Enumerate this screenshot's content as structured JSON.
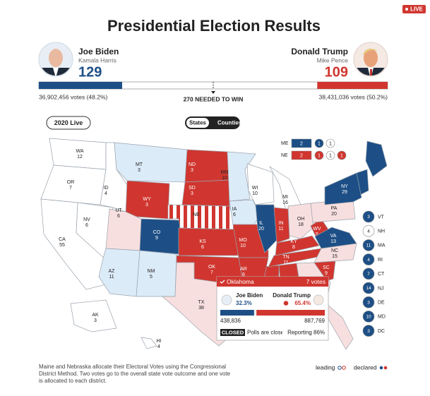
{
  "header": {
    "title": "Presidential Election Results",
    "live": "LIVE"
  },
  "candidates": [
    {
      "name": "Joe Biden",
      "running_mate": "Kamala Harris",
      "electoral_votes": 129,
      "popular": "36,902,456 votes (48.2%)",
      "color": "#1d4f86"
    },
    {
      "name": "Donald Trump",
      "running_mate": "Mike Pence",
      "electoral_votes": 109,
      "popular": "38,431,036 votes (50.2%)",
      "color": "#d0362f"
    }
  ],
  "needed_to_win": {
    "value": 270,
    "label": "270 NEEDED TO WIN"
  },
  "controls": {
    "year_button": "2020 Live",
    "toggle": [
      "States",
      "Counties"
    ]
  },
  "split_states": [
    {
      "abbr": "ME",
      "items": [
        {
          "votes": 2,
          "color": "#1d4f86",
          "shape": "box"
        },
        {
          "votes": 1,
          "color": "#1d4f86"
        },
        {
          "votes": 1,
          "color": "#ffffff"
        }
      ]
    },
    {
      "abbr": "NE",
      "items": [
        {
          "votes": 2,
          "color": "#d0362f",
          "shape": "box"
        },
        {
          "votes": 1,
          "color": "#d0362f"
        },
        {
          "votes": 1,
          "color": "#ffffff"
        },
        {
          "votes": 1,
          "color": "#d0362f"
        }
      ]
    }
  ],
  "states": [
    {
      "abbr": "WA",
      "votes": 12,
      "color": "#ffffff"
    },
    {
      "abbr": "OR",
      "votes": 7,
      "color": "#ffffff"
    },
    {
      "abbr": "CA",
      "votes": 55,
      "color": "#ffffff"
    },
    {
      "abbr": "NV",
      "votes": 6,
      "color": "#ffffff"
    },
    {
      "abbr": "ID",
      "votes": 4,
      "color": "#ffffff"
    },
    {
      "abbr": "MT",
      "votes": 3,
      "color": "#dcebf8"
    },
    {
      "abbr": "WY",
      "votes": 3,
      "color": "#d0362f"
    },
    {
      "abbr": "UT",
      "votes": 6,
      "color": "#f8dfdf"
    },
    {
      "abbr": "CO",
      "votes": 9,
      "color": "#1d4f86"
    },
    {
      "abbr": "AZ",
      "votes": 11,
      "color": "#dcebf8"
    },
    {
      "abbr": "NM",
      "votes": 5,
      "color": "#dcebf8"
    },
    {
      "abbr": "ND",
      "votes": 3,
      "color": "#d0362f"
    },
    {
      "abbr": "SD",
      "votes": 3,
      "color": "#d0362f"
    },
    {
      "abbr": "NE",
      "color": "#d0362f",
      "pattern": "striped"
    },
    {
      "abbr": "KS",
      "votes": 6,
      "color": "#d0362f"
    },
    {
      "abbr": "OK",
      "votes": 7,
      "color": "#d0362f"
    },
    {
      "abbr": "TX",
      "votes": 38,
      "color": "#f8dfdf"
    },
    {
      "abbr": "MN",
      "votes": 10,
      "color": "#dcebf8"
    },
    {
      "abbr": "IA",
      "votes": 6,
      "color": "#dcebf8"
    },
    {
      "abbr": "MO",
      "votes": 10,
      "color": "#d0362f"
    },
    {
      "abbr": "AR",
      "votes": 6,
      "color": "#d0362f"
    },
    {
      "abbr": "WI",
      "votes": 10,
      "color": "#ffffff"
    },
    {
      "abbr": "IL",
      "votes": 20,
      "color": "#1d4f86"
    },
    {
      "abbr": "MI",
      "votes": 16,
      "color": "#ffffff"
    },
    {
      "abbr": "IN",
      "votes": 11,
      "color": "#d0362f"
    },
    {
      "abbr": "OH",
      "votes": 18,
      "color": "#f8dfdf"
    },
    {
      "abbr": "KY",
      "votes": 8,
      "color": "#d0362f"
    },
    {
      "abbr": "TN",
      "votes": 11,
      "color": "#d0362f"
    },
    {
      "abbr": "WV",
      "votes": 5,
      "color": "#d0362f"
    },
    {
      "abbr": "VA",
      "votes": 13,
      "color": "#1d4f86"
    },
    {
      "abbr": "NC",
      "votes": 15,
      "color": "#f8dfdf"
    },
    {
      "abbr": "SC",
      "votes": 9,
      "color": "#d0362f"
    },
    {
      "abbr": "PA",
      "votes": 20,
      "color": "#f8dfdf"
    },
    {
      "abbr": "NY",
      "votes": 29,
      "color": "#1d4f86"
    },
    {
      "abbr": "AK",
      "votes": 3,
      "color": "#ffffff"
    },
    {
      "abbr": "HI",
      "votes": 4,
      "color": "#ffffff"
    }
  ],
  "other_state_colors": [
    "#d0362f",
    "#d0362f",
    "#d0362f",
    "#f8dfdf",
    "#f8dfdf",
    "#1d4f86",
    "#1d4f86"
  ],
  "small_states": [
    {
      "abbr": "VT",
      "votes": 3,
      "color": "#1d4f86"
    },
    {
      "abbr": "NH",
      "votes": 4,
      "color": "#ffffff"
    },
    {
      "abbr": "MA",
      "votes": 11,
      "color": "#1d4f86"
    },
    {
      "abbr": "RI",
      "votes": 4,
      "color": "#1d4f86"
    },
    {
      "abbr": "CT",
      "votes": 7,
      "color": "#1d4f86"
    },
    {
      "abbr": "NJ",
      "votes": 14,
      "color": "#1d4f86"
    },
    {
      "abbr": "DE",
      "votes": 3,
      "color": "#1d4f86"
    },
    {
      "abbr": "MD",
      "votes": 10,
      "color": "#1d4f86"
    },
    {
      "abbr": "DC",
      "votes": 3,
      "color": "#1d4f86"
    }
  ],
  "tooltip": {
    "state": "Oklahoma",
    "votes": "7 votes",
    "candidates": [
      {
        "name": "Joe Biden",
        "pct": 32.3,
        "pct_label": "32.3%",
        "count": "438,836"
      },
      {
        "name": "Donald Trump",
        "pct": 65.4,
        "pct_label": "65.4%",
        "count": "887,769"
      }
    ],
    "status": "CLOSED",
    "polls": "Polls are closed",
    "reporting": "Reporting 86%"
  },
  "legend": {
    "leading": "leading",
    "declared": "declared"
  },
  "footnote": [
    "Maine and Nebraska allocate their Electoral Votes using the Congressional",
    "District Method. Two votes go to the overall state vote outcome and one vote",
    "is allocated to each district."
  ]
}
